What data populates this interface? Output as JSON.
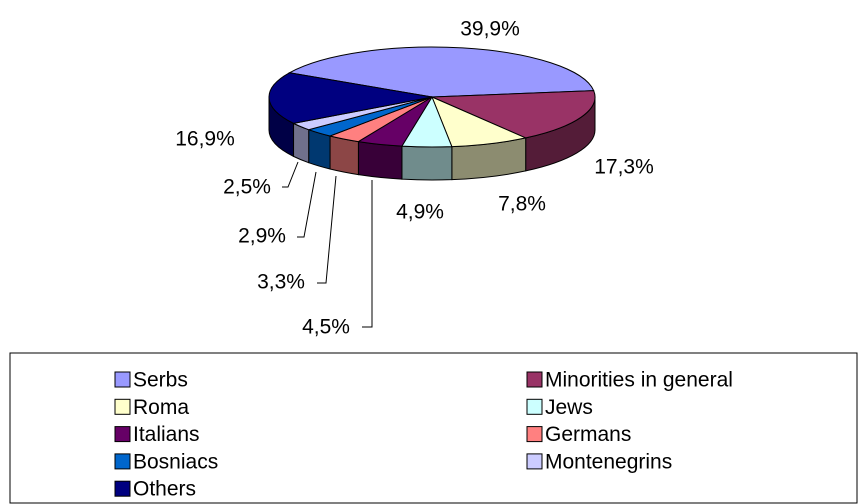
{
  "chart_data": {
    "type": "pie3d",
    "categories": [
      "Serbs",
      "Minorities in general",
      "Roma",
      "Jews",
      "Italians",
      "Germans",
      "Bosniacs",
      "Montenegrins",
      "Others"
    ],
    "values": [
      39.9,
      17.3,
      7.8,
      4.9,
      4.5,
      3.3,
      2.9,
      2.5,
      16.9
    ],
    "value_labels": [
      "39,9%",
      "17,3%",
      "7,8%",
      "4,9%",
      "4,5%",
      "3,3%",
      "2,9%",
      "2,5%",
      "16,9%"
    ],
    "colors": [
      "#9999ff",
      "#993366",
      "#ffffcc",
      "#ccffff",
      "#660066",
      "#ff8080",
      "#0066cc",
      "#ccccff",
      "#000080"
    ],
    "legend": "bottom"
  }
}
